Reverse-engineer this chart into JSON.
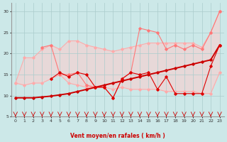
{
  "x": [
    0,
    1,
    2,
    3,
    4,
    5,
    6,
    7,
    8,
    9,
    10,
    11,
    12,
    13,
    14,
    15,
    16,
    17,
    18,
    19,
    20,
    21,
    22,
    23
  ],
  "bg_color": "#cce8e8",
  "grid_color": "#aacccc",
  "xlabel": "Vent moyen/en rafales ( km/h )",
  "ylim": [
    5,
    32
  ],
  "xlim": [
    -0.5,
    23.5
  ],
  "yticks": [
    5,
    10,
    15,
    20,
    25,
    30
  ],
  "xticks": [
    0,
    1,
    2,
    3,
    4,
    5,
    6,
    7,
    8,
    9,
    10,
    11,
    12,
    13,
    14,
    15,
    16,
    17,
    18,
    19,
    20,
    21,
    22,
    23
  ],
  "line_upper_pale": [
    13,
    19,
    19,
    21,
    22,
    21,
    23,
    23,
    22,
    21.5,
    21,
    20.5,
    21,
    21.5,
    22,
    22.5,
    22.5,
    22.5,
    22.5,
    22.5,
    22.5,
    21.5,
    25,
    30
  ],
  "line_lower_pale": [
    13,
    12.5,
    13,
    13,
    14,
    15,
    13,
    12.5,
    12,
    12,
    12,
    11.5,
    12,
    11.5,
    11.5,
    11.5,
    11.5,
    11,
    11,
    11,
    11,
    10.5,
    10.5,
    15.5
  ],
  "line_mid_jagged": [
    null,
    null,
    null,
    21.5,
    22,
    15,
    15,
    15.5,
    12.5,
    12,
    12,
    9.5,
    14,
    15.5,
    26,
    25.5,
    25,
    21,
    22,
    21,
    22,
    21,
    25,
    30
  ],
  "line_dark_linear": [
    9.5,
    9.5,
    9.5,
    9.7,
    9.9,
    10.2,
    10.5,
    11.0,
    11.5,
    12.0,
    12.5,
    13.0,
    13.5,
    14.0,
    14.5,
    15.0,
    15.5,
    16.0,
    16.5,
    17.0,
    17.5,
    18.0,
    18.5,
    22.0
  ],
  "line_red_volatile": [
    null,
    null,
    null,
    null,
    14,
    15.5,
    14.5,
    15.5,
    15,
    12,
    12,
    9.5,
    14,
    15.5,
    15,
    15.5,
    11.5,
    14.5,
    10.5,
    10.5,
    10.5,
    10.5,
    17,
    22
  ],
  "color_pale": "#ffaaaa",
  "color_mid": "#ff7777",
  "color_dark": "#cc0000",
  "color_red": "#dd0000"
}
